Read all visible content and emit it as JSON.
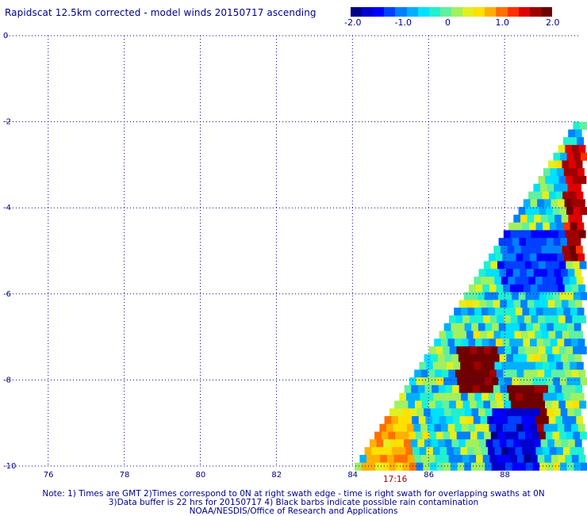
{
  "header": {
    "title": "Rapidscat 12.5km corrected - model winds 20150717 ascending"
  },
  "colorbar": {
    "tick_labels": [
      "-2.0",
      "-1.0",
      "0",
      "1.0",
      "2.0"
    ],
    "tick_values": [
      -2.0,
      -1.0,
      0,
      1.0,
      2.0
    ],
    "range": [
      -2.0,
      2.0
    ],
    "colors": [
      "#00008b",
      "#0000cd",
      "#0000ff",
      "#0040ff",
      "#0080ff",
      "#00b0ff",
      "#00e0ff",
      "#20f0d0",
      "#60f0a0",
      "#a0f060",
      "#e0f020",
      "#ffe000",
      "#ffb000",
      "#ff7000",
      "#ff3000",
      "#e00000",
      "#a00000",
      "#700000"
    ]
  },
  "axes": {
    "x_tick_labels": [
      "76",
      "78",
      "80",
      "82",
      "84",
      "86",
      "88"
    ],
    "y_tick_labels": [
      "0",
      "-2",
      "-4",
      "-6",
      "-8",
      "-10"
    ]
  },
  "timestamp": "17:16",
  "footer": {
    "line1": "Note: 1) Times are GMT 2)Times correspond to 0N at right swath edge - time is right swath for overlapping swaths at 0N",
    "line2": "3)Data buffer is 22 hrs for 20150717 4) Black barbs indicate possible rain contamination",
    "line3": "NOAA/NESDIS/Office of Research and Applications"
  },
  "chart_data": {
    "type": "heatmap",
    "title": "Rapidscat 12.5km corrected - model winds 20150717 ascending",
    "xlabel": "",
    "ylabel": "",
    "xlim": [
      74.9,
      90.0
    ],
    "ylim": [
      -10,
      0
    ],
    "x_ticks": [
      76,
      78,
      80,
      82,
      84,
      86,
      88
    ],
    "y_ticks": [
      0,
      -2,
      -4,
      -6,
      -8,
      -10
    ],
    "grid": true,
    "value_range": [
      -2.0,
      2.0
    ],
    "swath_edge": {
      "lon_at_lat_minus10": 84.0,
      "lon_at_lat_minus2": 89.8
    },
    "features": [
      {
        "lon_range": [
          86.7,
          87.7
        ],
        "lat_range": [
          -8.2,
          -7.2
        ],
        "value": 2.0
      },
      {
        "lon_range": [
          88.0,
          89.0
        ],
        "lat_range": [
          -9.2,
          -8.0
        ],
        "value": 2.0
      },
      {
        "lon_range": [
          89.5,
          90.0
        ],
        "lat_range": [
          -5.2,
          -2.5
        ],
        "value": 1.6
      },
      {
        "lon_range": [
          87.8,
          89.5
        ],
        "lat_range": [
          -5.8,
          -4.5
        ],
        "value": -1.2
      },
      {
        "lon_range": [
          87.5,
          88.8
        ],
        "lat_range": [
          -10.0,
          -8.6
        ],
        "value": -1.5
      },
      {
        "lon_range": [
          84.2,
          85.5
        ],
        "lat_range": [
          -10.0,
          -8.5
        ],
        "value": 0.7
      }
    ],
    "annotations": [
      "17:16"
    ]
  }
}
